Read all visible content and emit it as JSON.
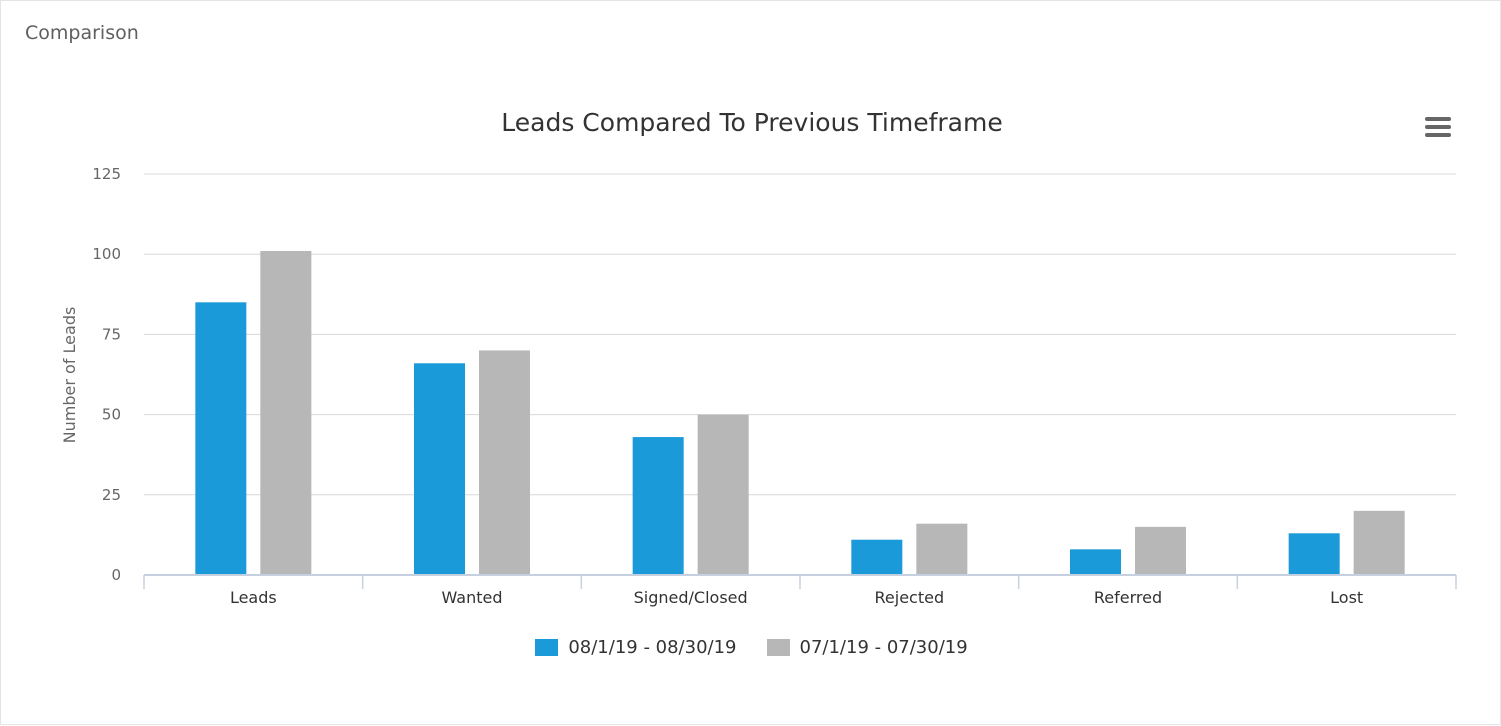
{
  "panel": {
    "title": "Comparison"
  },
  "chart_data": {
    "type": "bar",
    "title": "Leads Compared To Previous Timeframe",
    "xlabel": "",
    "ylabel": "Number of Leads",
    "ylim": [
      0,
      125
    ],
    "yticks": [
      0,
      25,
      50,
      75,
      100,
      125
    ],
    "categories": [
      "Leads",
      "Wanted",
      "Signed/Closed",
      "Rejected",
      "Referred",
      "Lost"
    ],
    "series": [
      {
        "name": "08/1/19 - 08/30/19",
        "color": "#1b9ad9",
        "values": [
          85,
          66,
          43,
          11,
          8,
          13
        ]
      },
      {
        "name": "07/1/19 - 07/30/19",
        "color": "#b7b7b7",
        "values": [
          101,
          70,
          50,
          16,
          15,
          20
        ]
      }
    ],
    "legend_position": "bottom-center",
    "grid": true
  },
  "menu": {
    "icon": "hamburger-menu-icon"
  }
}
